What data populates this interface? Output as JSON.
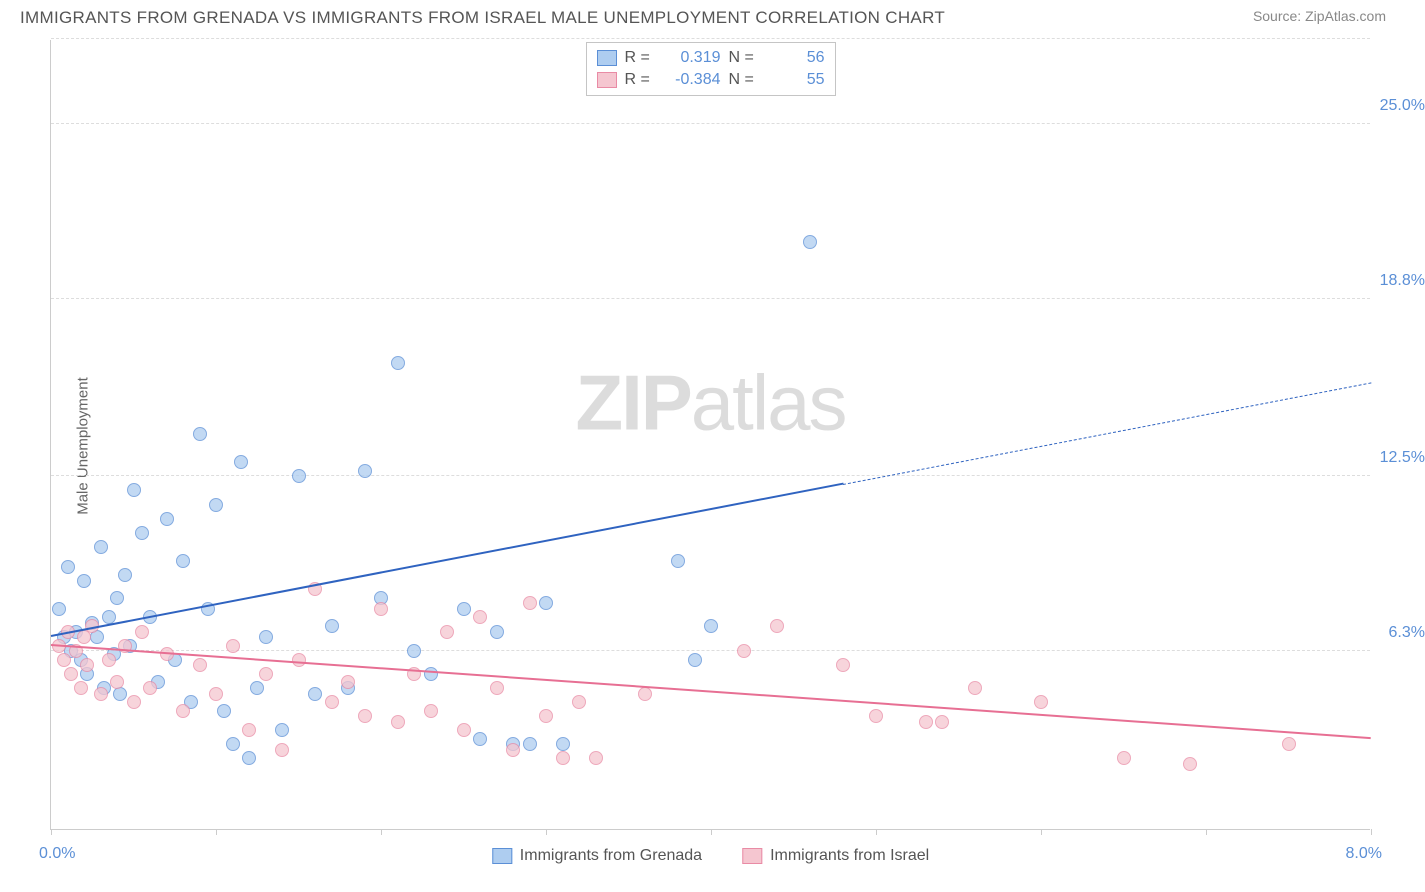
{
  "header": {
    "title": "IMMIGRANTS FROM GRENADA VS IMMIGRANTS FROM ISRAEL MALE UNEMPLOYMENT CORRELATION CHART",
    "source": "Source: ZipAtlas.com"
  },
  "watermark": {
    "bold": "ZIP",
    "rest": "atlas"
  },
  "chart": {
    "type": "scatter",
    "x_axis": {
      "min": 0.0,
      "max": 8.0,
      "label_left": "0.0%",
      "label_right": "8.0%",
      "ticks": [
        0,
        1,
        2,
        3,
        4,
        5,
        6,
        7,
        8
      ]
    },
    "y_axis": {
      "title": "Male Unemployment",
      "min": 0.0,
      "max": 28.0,
      "gridlines": [
        {
          "value": 6.3,
          "label": "6.3%"
        },
        {
          "value": 12.5,
          "label": "12.5%"
        },
        {
          "value": 18.8,
          "label": "18.8%"
        },
        {
          "value": 25.0,
          "label": "25.0%"
        }
      ]
    },
    "background_color": "#ffffff",
    "grid_color": "#dddddd",
    "axis_color": "#cccccc",
    "tick_label_color": "#5b8fd6",
    "series": [
      {
        "name": "Immigrants from Grenada",
        "marker_color_fill": "#aecdf0",
        "marker_color_stroke": "#5b8fd6",
        "marker_opacity": 0.75,
        "marker_radius": 7,
        "line_color": "#2f63c0",
        "line_width": 2.5,
        "stats": {
          "r_label": "R =",
          "r_value": "0.319",
          "n_label": "N =",
          "n_value": "56"
        },
        "regression": {
          "x1": 0.0,
          "y1": 6.8,
          "x2_solid": 4.8,
          "y2_solid": 12.2,
          "x2_dash": 8.0,
          "y2_dash": 15.8
        },
        "points": [
          [
            0.05,
            7.8
          ],
          [
            0.08,
            6.8
          ],
          [
            0.1,
            9.3
          ],
          [
            0.12,
            6.3
          ],
          [
            0.15,
            7.0
          ],
          [
            0.18,
            6.0
          ],
          [
            0.2,
            8.8
          ],
          [
            0.22,
            5.5
          ],
          [
            0.25,
            7.3
          ],
          [
            0.28,
            6.8
          ],
          [
            0.3,
            10.0
          ],
          [
            0.32,
            5.0
          ],
          [
            0.35,
            7.5
          ],
          [
            0.38,
            6.2
          ],
          [
            0.4,
            8.2
          ],
          [
            0.42,
            4.8
          ],
          [
            0.45,
            9.0
          ],
          [
            0.48,
            6.5
          ],
          [
            0.5,
            12.0
          ],
          [
            0.55,
            10.5
          ],
          [
            0.6,
            7.5
          ],
          [
            0.65,
            5.2
          ],
          [
            0.7,
            11.0
          ],
          [
            0.75,
            6.0
          ],
          [
            0.8,
            9.5
          ],
          [
            0.85,
            4.5
          ],
          [
            0.9,
            14.0
          ],
          [
            0.95,
            7.8
          ],
          [
            1.0,
            11.5
          ],
          [
            1.05,
            4.2
          ],
          [
            1.1,
            3.0
          ],
          [
            1.15,
            13.0
          ],
          [
            1.2,
            2.5
          ],
          [
            1.25,
            5.0
          ],
          [
            1.3,
            6.8
          ],
          [
            1.4,
            3.5
          ],
          [
            1.5,
            12.5
          ],
          [
            1.6,
            4.8
          ],
          [
            1.7,
            7.2
          ],
          [
            1.8,
            5.0
          ],
          [
            1.9,
            12.7
          ],
          [
            2.0,
            8.2
          ],
          [
            2.1,
            16.5
          ],
          [
            2.2,
            6.3
          ],
          [
            2.3,
            5.5
          ],
          [
            2.5,
            7.8
          ],
          [
            2.6,
            3.2
          ],
          [
            2.7,
            7.0
          ],
          [
            2.8,
            3.0
          ],
          [
            2.9,
            3.0
          ],
          [
            3.0,
            8.0
          ],
          [
            3.1,
            3.0
          ],
          [
            3.8,
            9.5
          ],
          [
            3.9,
            6.0
          ],
          [
            4.0,
            7.2
          ],
          [
            4.6,
            20.8
          ]
        ]
      },
      {
        "name": "Immigrants from Israel",
        "marker_color_fill": "#f5c6d0",
        "marker_color_stroke": "#e98ba5",
        "marker_opacity": 0.75,
        "marker_radius": 7,
        "line_color": "#e76f93",
        "line_width": 2.5,
        "stats": {
          "r_label": "R =",
          "r_value": "-0.384",
          "n_label": "N =",
          "n_value": "55"
        },
        "regression": {
          "x1": 0.0,
          "y1": 6.5,
          "x2_solid": 8.0,
          "y2_solid": 3.2,
          "x2_dash": 8.0,
          "y2_dash": 3.2
        },
        "points": [
          [
            0.05,
            6.5
          ],
          [
            0.08,
            6.0
          ],
          [
            0.1,
            7.0
          ],
          [
            0.12,
            5.5
          ],
          [
            0.15,
            6.3
          ],
          [
            0.18,
            5.0
          ],
          [
            0.2,
            6.8
          ],
          [
            0.22,
            5.8
          ],
          [
            0.25,
            7.2
          ],
          [
            0.3,
            4.8
          ],
          [
            0.35,
            6.0
          ],
          [
            0.4,
            5.2
          ],
          [
            0.45,
            6.5
          ],
          [
            0.5,
            4.5
          ],
          [
            0.55,
            7.0
          ],
          [
            0.6,
            5.0
          ],
          [
            0.7,
            6.2
          ],
          [
            0.8,
            4.2
          ],
          [
            0.9,
            5.8
          ],
          [
            1.0,
            4.8
          ],
          [
            1.1,
            6.5
          ],
          [
            1.2,
            3.5
          ],
          [
            1.3,
            5.5
          ],
          [
            1.4,
            2.8
          ],
          [
            1.5,
            6.0
          ],
          [
            1.6,
            8.5
          ],
          [
            1.7,
            4.5
          ],
          [
            1.8,
            5.2
          ],
          [
            1.9,
            4.0
          ],
          [
            2.0,
            7.8
          ],
          [
            2.1,
            3.8
          ],
          [
            2.2,
            5.5
          ],
          [
            2.3,
            4.2
          ],
          [
            2.4,
            7.0
          ],
          [
            2.5,
            3.5
          ],
          [
            2.6,
            7.5
          ],
          [
            2.7,
            5.0
          ],
          [
            2.8,
            2.8
          ],
          [
            2.9,
            8.0
          ],
          [
            3.0,
            4.0
          ],
          [
            3.1,
            2.5
          ],
          [
            3.2,
            4.5
          ],
          [
            3.3,
            2.5
          ],
          [
            3.6,
            4.8
          ],
          [
            4.2,
            6.3
          ],
          [
            4.4,
            7.2
          ],
          [
            4.8,
            5.8
          ],
          [
            5.0,
            4.0
          ],
          [
            5.3,
            3.8
          ],
          [
            5.4,
            3.8
          ],
          [
            5.6,
            5.0
          ],
          [
            6.0,
            4.5
          ],
          [
            6.5,
            2.5
          ],
          [
            6.9,
            2.3
          ],
          [
            7.5,
            3.0
          ]
        ]
      }
    ],
    "legend_bottom": [
      {
        "swatch_fill": "#aecdf0",
        "swatch_stroke": "#5b8fd6",
        "label": "Immigrants from Grenada"
      },
      {
        "swatch_fill": "#f5c6d0",
        "swatch_stroke": "#e98ba5",
        "label": "Immigrants from Israel"
      }
    ]
  }
}
